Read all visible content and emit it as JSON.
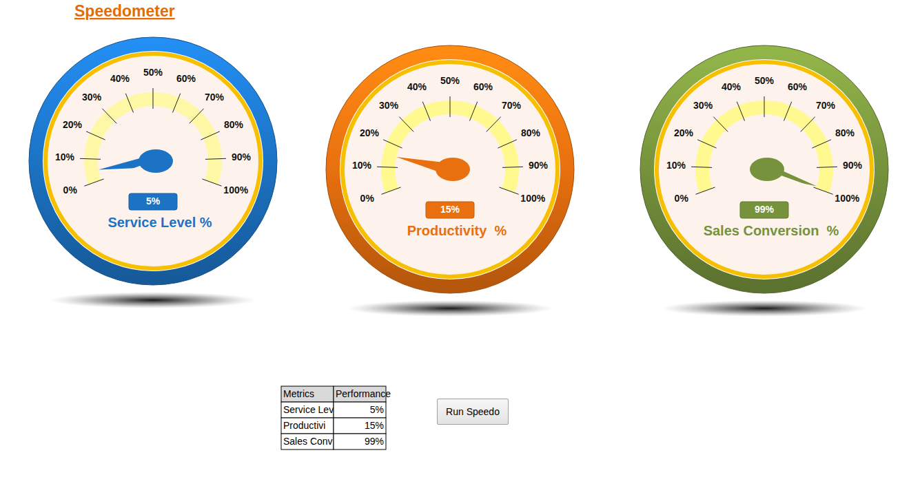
{
  "title": "Speedometer",
  "chart_data": [
    {
      "type": "gauge",
      "title": "Service Level %",
      "values": [
        5
      ],
      "value_labels": [
        "5%"
      ],
      "color": "#1c73c4",
      "data_labels": true,
      "ylim": [
        0,
        100
      ],
      "yticks": [
        {
          "value": 0,
          "label": "0%"
        },
        {
          "value": 10,
          "label": "10%"
        },
        {
          "value": 20,
          "label": "20%"
        },
        {
          "value": 30,
          "label": "30%"
        },
        {
          "value": 40,
          "label": "40%"
        },
        {
          "value": 50,
          "label": "50%"
        },
        {
          "value": 60,
          "label": "60%"
        },
        {
          "value": 70,
          "label": "70%"
        },
        {
          "value": 80,
          "label": "80%"
        },
        {
          "value": 90,
          "label": "90%"
        },
        {
          "value": 100,
          "label": "100%"
        }
      ]
    },
    {
      "type": "gauge",
      "title": "Productivity  %",
      "values": [
        15
      ],
      "value_labels": [
        "15%"
      ],
      "color": "#e8700f",
      "data_labels": true,
      "ylim": [
        0,
        100
      ],
      "yticks": [
        {
          "value": 0,
          "label": "0%"
        },
        {
          "value": 10,
          "label": "10%"
        },
        {
          "value": 20,
          "label": "20%"
        },
        {
          "value": 30,
          "label": "30%"
        },
        {
          "value": 40,
          "label": "40%"
        },
        {
          "value": 50,
          "label": "50%"
        },
        {
          "value": 60,
          "label": "60%"
        },
        {
          "value": 70,
          "label": "70%"
        },
        {
          "value": 80,
          "label": "80%"
        },
        {
          "value": 90,
          "label": "90%"
        },
        {
          "value": 100,
          "label": "100%"
        }
      ]
    },
    {
      "type": "gauge",
      "title": "Sales Conversion  %",
      "values": [
        99
      ],
      "value_labels": [
        "99%"
      ],
      "color": "#76923c",
      "data_labels": true,
      "ylim": [
        0,
        100
      ],
      "yticks": [
        {
          "value": 0,
          "label": "0%"
        },
        {
          "value": 10,
          "label": "10%"
        },
        {
          "value": 20,
          "label": "20%"
        },
        {
          "value": 30,
          "label": "30%"
        },
        {
          "value": 40,
          "label": "40%"
        },
        {
          "value": 50,
          "label": "50%"
        },
        {
          "value": 60,
          "label": "60%"
        },
        {
          "value": 70,
          "label": "70%"
        },
        {
          "value": 80,
          "label": "80%"
        },
        {
          "value": 90,
          "label": "90%"
        },
        {
          "value": 100,
          "label": "100%"
        }
      ]
    }
  ],
  "table": {
    "header": [
      "Metrics",
      "Performance"
    ],
    "rows": [
      [
        "Service Lev",
        "5%"
      ],
      [
        "Productivi",
        "15%"
      ],
      [
        "Sales Conv",
        "99%"
      ]
    ]
  },
  "button": {
    "label": "Run Speedo"
  }
}
